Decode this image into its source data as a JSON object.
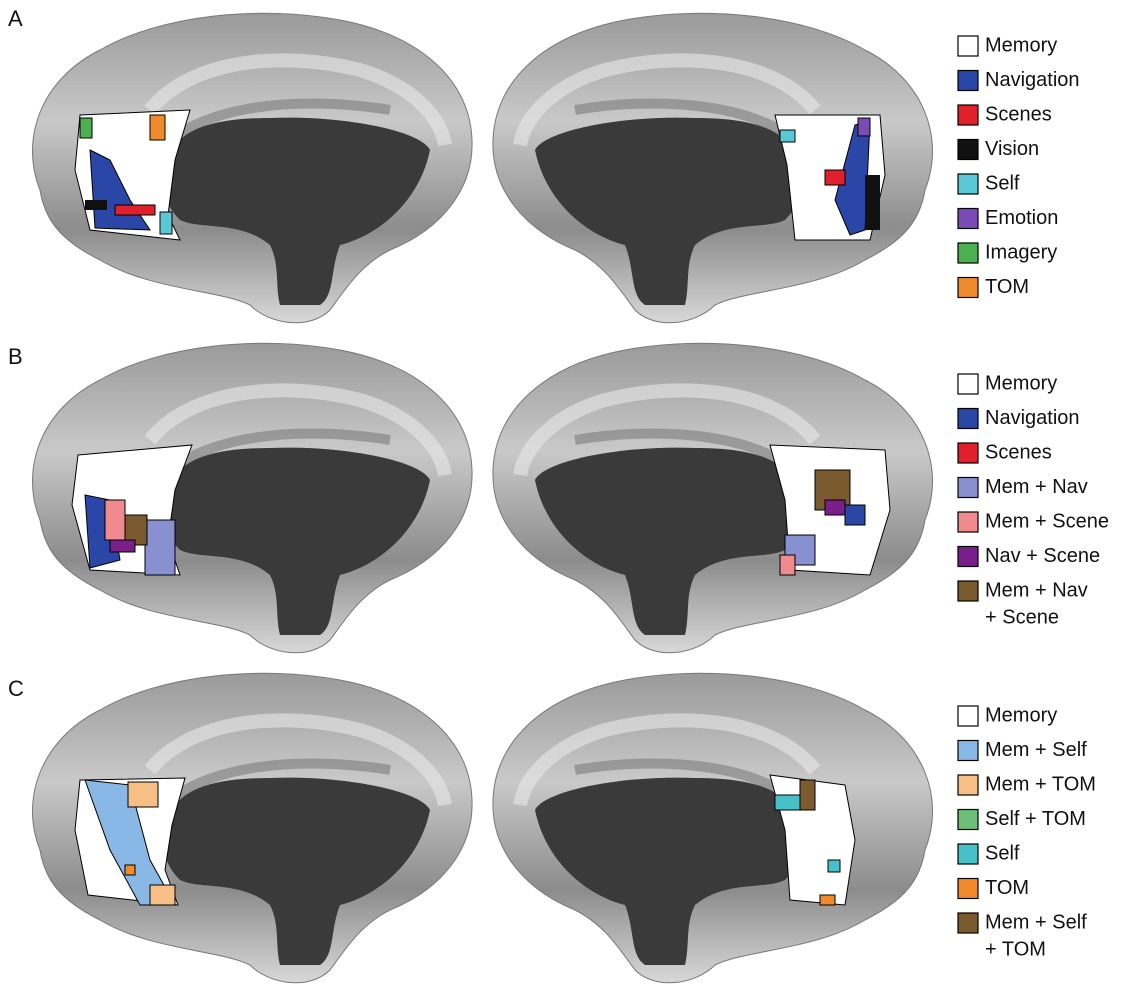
{
  "panels": [
    {
      "label": "A",
      "legend": [
        {
          "lines": [
            "Memory"
          ],
          "color": "#ffffff"
        },
        {
          "lines": [
            "Navigation"
          ],
          "color": "#2a47a8"
        },
        {
          "lines": [
            "Scenes"
          ],
          "color": "#e0202a"
        },
        {
          "lines": [
            "Vision"
          ],
          "color": "#111111"
        },
        {
          "lines": [
            "Self"
          ],
          "color": "#5bc8d6"
        },
        {
          "lines": [
            "Emotion"
          ],
          "color": "#7a4bb5"
        },
        {
          "lines": [
            "Imagery"
          ],
          "color": "#4cb050"
        },
        {
          "lines": [
            "TOM"
          ],
          "color": "#f08a2a"
        }
      ]
    },
    {
      "label": "B",
      "legend": [
        {
          "lines": [
            "Memory"
          ],
          "color": "#ffffff"
        },
        {
          "lines": [
            "Navigation"
          ],
          "color": "#2a47a8"
        },
        {
          "lines": [
            "Scenes"
          ],
          "color": "#e0202a"
        },
        {
          "lines": [
            "Mem + Nav"
          ],
          "color": "#8890d0"
        },
        {
          "lines": [
            "Mem + Scene"
          ],
          "color": "#ef8a8e"
        },
        {
          "lines": [
            "Nav + Scene"
          ],
          "color": "#7a1f8a"
        },
        {
          "lines": [
            "Mem + Nav",
            "+ Scene"
          ],
          "color": "#7a5a2e"
        }
      ]
    },
    {
      "label": "C",
      "legend": [
        {
          "lines": [
            "Memory"
          ],
          "color": "#ffffff"
        },
        {
          "lines": [
            "Mem + Self"
          ],
          "color": "#8ab8e6"
        },
        {
          "lines": [
            "Mem + TOM"
          ],
          "color": "#f5bf86"
        },
        {
          "lines": [
            "Self + TOM"
          ],
          "color": "#6dbf78"
        },
        {
          "lines": [
            "Self"
          ],
          "color": "#48c0c8"
        },
        {
          "lines": [
            "TOM"
          ],
          "color": "#f08a2a"
        },
        {
          "lines": [
            "Mem + Self",
            "+ TOM"
          ],
          "color": "#7a5a2e"
        }
      ]
    }
  ]
}
